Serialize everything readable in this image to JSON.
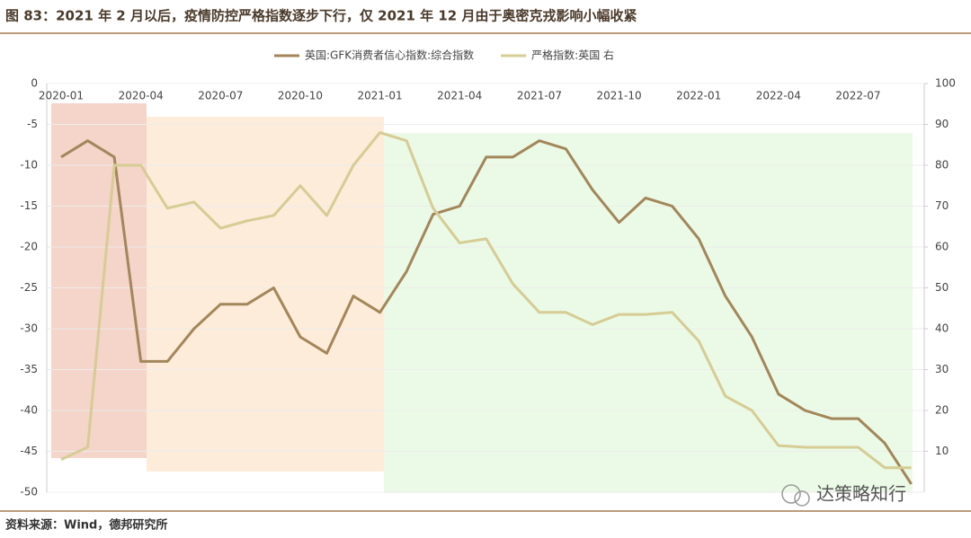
{
  "chart_data": {
    "type": "line",
    "title": "图 83：2021 年 2 月以后，疫情防控严格指数逐步下行，仅 2021 年 12 月由于奥密克戎影响小幅收紧",
    "source": "资料来源：Wind，德邦研究所",
    "watermark": "达策略知行",
    "categories": [
      "2020-01",
      null,
      null,
      "2020-04",
      null,
      null,
      "2020-07",
      null,
      null,
      "2020-10",
      null,
      null,
      "2021-01",
      null,
      null,
      "2021-04",
      null,
      null,
      "2021-07",
      null,
      null,
      "2021-10",
      null,
      null,
      "2022-01",
      null,
      null,
      "2022-04",
      null,
      null,
      "2022-07",
      null,
      null
    ],
    "series": [
      {
        "name": "英国:GFK消费者信心指数:综合指数",
        "color": "#a3865a",
        "values": [
          -9,
          -7,
          -9,
          -34,
          -34,
          -30,
          -27,
          -27,
          -25,
          -31,
          -33,
          -26,
          -28,
          -23,
          -16,
          -15,
          -9,
          -9,
          -7,
          -8,
          -13,
          -17,
          -14,
          -15,
          -19,
          -26,
          -31,
          -38,
          -40,
          -41,
          -41,
          -44,
          -49
        ]
      },
      {
        "name": "严格指数:英国 右",
        "color": "#d6cc94",
        "axis": "y2",
        "values": [
          8,
          11,
          80,
          80,
          69.5,
          71,
          64.6,
          66.4,
          67.7,
          75,
          67.7,
          80,
          88,
          86,
          69.5,
          61,
          62,
          51,
          44,
          44,
          41,
          43.5,
          43.5,
          44,
          37,
          23.5,
          20,
          11.4,
          11,
          11,
          11,
          6,
          6
        ]
      }
    ],
    "ylim": [
      -50,
      0
    ],
    "yticks": [
      0,
      -5,
      -10,
      -15,
      -20,
      -25,
      -30,
      -35,
      -40,
      -45,
      -50
    ],
    "y2lim": [
      0,
      100
    ],
    "y2ticks": [
      10,
      20,
      30,
      40,
      50,
      60,
      70,
      80,
      90,
      100
    ],
    "grid": true
  }
}
